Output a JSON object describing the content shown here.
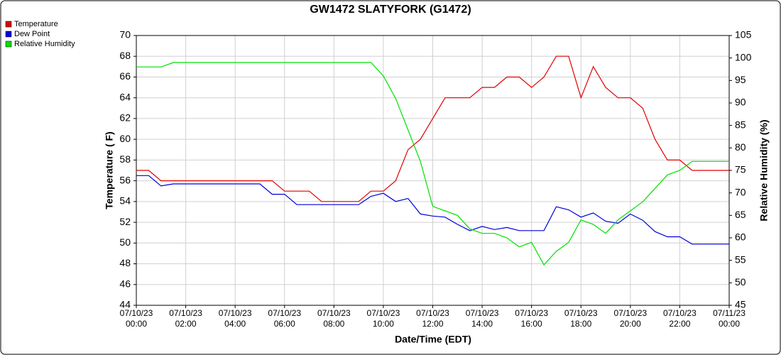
{
  "chart_data": {
    "type": "line",
    "title": "GW1472 SLATYFORK (G1472)",
    "x_label": "Date/Time (EDT)",
    "y_label": "Temperature ( F)",
    "y2_label": "Relative Humidity (%)",
    "legend": "top-left",
    "grid": true,
    "xlim": [
      "07/10/23 00:00",
      "07/11/23 00:00"
    ],
    "xticks": [
      "07/10/23 00:00",
      "07/10/23 02:00",
      "07/10/23 04:00",
      "07/10/23 06:00",
      "07/10/23 08:00",
      "07/10/23 10:00",
      "07/10/23 12:00",
      "07/10/23 14:00",
      "07/10/23 16:00",
      "07/10/23 18:00",
      "07/10/23 20:00",
      "07/10/23 22:00",
      "07/11/23 00:00"
    ],
    "ylim": [
      44,
      70
    ],
    "yticks": [
      44,
      46,
      48,
      50,
      52,
      54,
      56,
      58,
      60,
      62,
      64,
      66,
      68,
      70
    ],
    "y2lim": [
      45,
      105
    ],
    "y2ticks": [
      45,
      50,
      55,
      60,
      65,
      70,
      75,
      80,
      85,
      90,
      95,
      100,
      105
    ],
    "x": [
      "07/10/23 00:00",
      "07/10/23 00:30",
      "07/10/23 01:00",
      "07/10/23 01:30",
      "07/10/23 02:00",
      "07/10/23 02:30",
      "07/10/23 03:00",
      "07/10/23 03:30",
      "07/10/23 04:00",
      "07/10/23 04:30",
      "07/10/23 05:00",
      "07/10/23 05:30",
      "07/10/23 06:00",
      "07/10/23 06:30",
      "07/10/23 07:00",
      "07/10/23 07:30",
      "07/10/23 08:00",
      "07/10/23 08:30",
      "07/10/23 09:00",
      "07/10/23 09:30",
      "07/10/23 10:00",
      "07/10/23 10:30",
      "07/10/23 11:00",
      "07/10/23 11:30",
      "07/10/23 12:00",
      "07/10/23 12:30",
      "07/10/23 13:00",
      "07/10/23 13:30",
      "07/10/23 14:00",
      "07/10/23 14:30",
      "07/10/23 15:00",
      "07/10/23 15:30",
      "07/10/23 16:00",
      "07/10/23 16:30",
      "07/10/23 17:00",
      "07/10/23 17:30",
      "07/10/23 18:00",
      "07/10/23 18:30",
      "07/10/23 19:00",
      "07/10/23 19:30",
      "07/10/23 20:00",
      "07/10/23 20:30",
      "07/10/23 21:00",
      "07/10/23 21:30",
      "07/10/23 22:00",
      "07/10/23 22:30",
      "07/10/23 23:00",
      "07/10/23 23:30",
      "07/11/23 00:00"
    ],
    "series": [
      {
        "name": "Temperature",
        "color": "#e00000",
        "values": [
          57,
          57,
          56,
          56,
          56,
          56,
          56,
          56,
          56,
          56,
          56,
          56,
          55,
          55,
          55,
          54,
          54,
          54,
          54,
          55,
          55,
          56,
          59,
          60,
          62,
          64,
          64,
          64,
          65,
          65,
          66,
          66,
          65,
          66,
          68,
          68,
          64,
          67,
          65,
          64,
          64,
          63,
          60,
          58,
          58,
          57,
          57,
          57,
          57
        ]
      },
      {
        "name": "Dew Point",
        "color": "#0000e0",
        "values": [
          56.5,
          56.5,
          55.5,
          55.7,
          55.7,
          55.7,
          55.7,
          55.7,
          55.7,
          55.7,
          55.7,
          54.7,
          54.7,
          53.7,
          53.7,
          53.7,
          53.7,
          53.7,
          53.7,
          54.5,
          54.8,
          54,
          54.3,
          52.8,
          52.6,
          52.5,
          51.8,
          51.2,
          51.6,
          51.3,
          51.5,
          51.2,
          51.2,
          51.2,
          53.5,
          53.2,
          52.5,
          52.9,
          52.1,
          51.9,
          52.8,
          52.2,
          51.1,
          50.6,
          50.6,
          49.9,
          49.9,
          49.9,
          49.9
        ]
      },
      {
        "name": "Relative Humidity",
        "color": "#00e000",
        "axis": "y2",
        "values": [
          98,
          98,
          98,
          99,
          99,
          99,
          99,
          99,
          99,
          99,
          99,
          99,
          99,
          99,
          99,
          99,
          99,
          99,
          99,
          99,
          96,
          91,
          84,
          77,
          67,
          66,
          65,
          62,
          61,
          61,
          60,
          58,
          59,
          54,
          57,
          59,
          64,
          63,
          61,
          64,
          66,
          68,
          71,
          74,
          75,
          77,
          77,
          77,
          77
        ]
      }
    ]
  }
}
